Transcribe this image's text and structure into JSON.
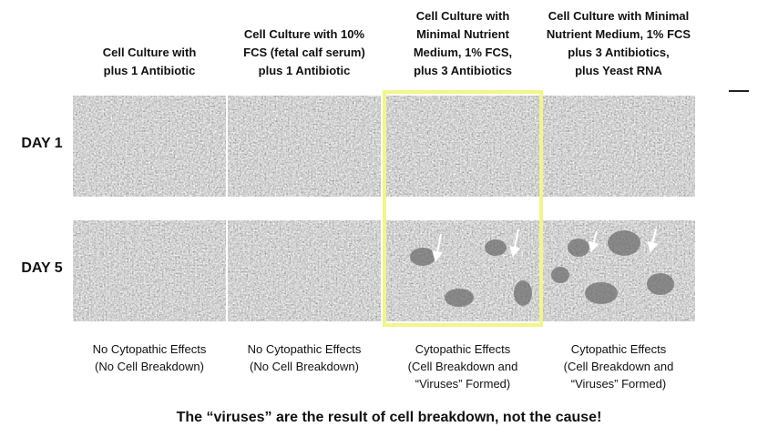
{
  "columns": [
    {
      "header": [
        "Cell Culture with",
        "plus 1 Antibiotic"
      ],
      "footer": [
        "No Cytopathic Effects",
        "(No Cell Breakdown)"
      ]
    },
    {
      "header": [
        "Cell Culture with 10%",
        "FCS (fetal calf serum)",
        "plus 1 Antibiotic"
      ],
      "footer": [
        "No Cytopathic Effects",
        "(No Cell Breakdown)"
      ]
    },
    {
      "header": [
        "Cell Culture with",
        "Minimal Nutrient",
        "Medium, 1% FCS,",
        "plus 3 Antibiotics"
      ],
      "footer": [
        "Cytopathic Effects",
        "(Cell Breakdown and",
        "“Viruses” Formed)"
      ]
    },
    {
      "header": [
        "Cell Culture with Minimal",
        "Nutrient Medium, 1% FCS",
        "plus 3 Antibiotics,",
        "plus Yeast RNA"
      ],
      "footer": [
        "Cytopathic Effects",
        "(Cell Breakdown and",
        "“Viruses” Formed)"
      ]
    }
  ],
  "rows": [
    "DAY 1",
    "DAY 5"
  ],
  "caption": "The “viruses” are the result of cell breakdown, not the cause!"
}
